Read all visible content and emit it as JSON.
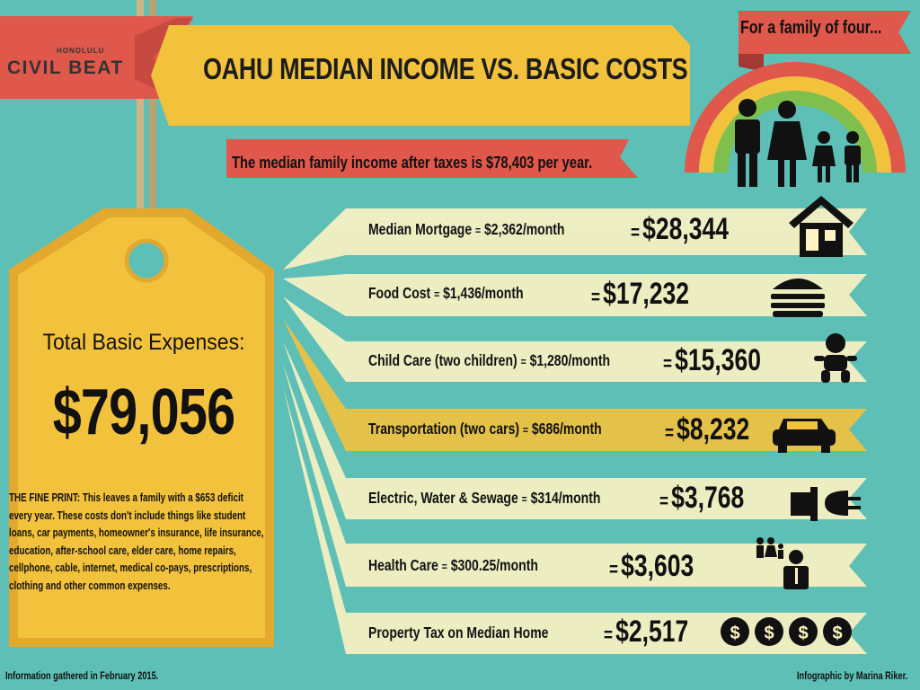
{
  "header": {
    "logo_small": "HONOLULU",
    "logo_main": "CIVIL BEAT",
    "title": "OAHU MEDIAN INCOME VS. BASIC COSTS",
    "tagline": "For a family of four...",
    "subtitle": "The median family income after taxes is $78,403 per year."
  },
  "price_tag": {
    "heading": "Total Basic Expenses:",
    "total": "$79,056",
    "fine_print": "THE FINE PRINT: This leaves a family with a $653 deficit every year. These costs don't include things like student loans, car payments, homeowner's insurance, life insurance, education, after-school care, elder care, home repairs, cellphone, cable, internet, medical co-pays, prescriptions, clothing and other common expenses."
  },
  "expenses": [
    {
      "name": "Median Mortgage",
      "eq": "=",
      "monthly": "$2,362/month",
      "annual": "$28,344",
      "icon": "house-icon"
    },
    {
      "name": "Food Cost",
      "eq": "=",
      "monthly": "$1,436/month",
      "annual": "$17,232",
      "icon": "burger-icon"
    },
    {
      "name": "Child Care (two children)",
      "eq": "=",
      "monthly": "$1,280/month",
      "annual": "$15,360",
      "icon": "baby-icon"
    },
    {
      "name": "Transportation (two cars)",
      "eq": "=",
      "monthly": "$686/month",
      "annual": "$8,232",
      "icon": "car-icon"
    },
    {
      "name": "Electric, Water & Sewage",
      "eq": "=",
      "monthly": "$314/month",
      "annual": "$3,768",
      "icon": "plug-icon"
    },
    {
      "name": "Health Care",
      "eq": "=",
      "monthly": "$300.25/month",
      "annual": "$3,603",
      "icon": "doctor-family-icon"
    },
    {
      "name": "Property Tax on Median Home",
      "eq": "",
      "monthly": "",
      "annual": "$2,517",
      "icon": "dollar-coins-icon"
    }
  ],
  "amount_eq": "=",
  "footer": {
    "left": "Information gathered in February 2015.",
    "right": "Infographic by Marina Riker."
  },
  "colors": {
    "background": "#5dbfb6",
    "banner_yellow": "#f3c23d",
    "banner_red": "#e0574b",
    "ribbon_cream": "#fdf3c4",
    "tag_yellow": "#f3c23d",
    "string": "#c8b27a"
  }
}
